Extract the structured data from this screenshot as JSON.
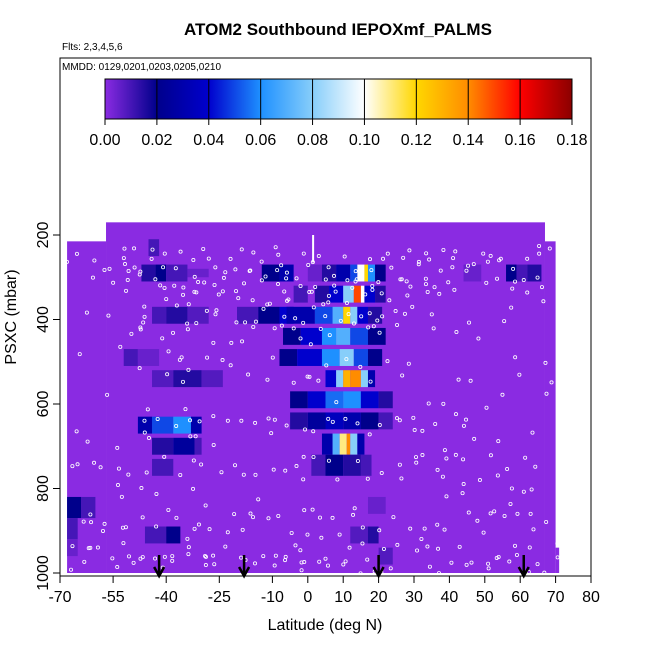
{
  "chart_data": {
    "type": "heatmap",
    "title": "ATOM2 Southbound IEPOXmf_PALMS",
    "flights_note": "Flts: 2,3,4,5,6",
    "dates_note": "MMDD: 0129,0201,0203,0205,0210",
    "xlabel": "Latitude (deg N)",
    "ylabel": "PSXC (mbar)",
    "xlim": [
      -70,
      80
    ],
    "ylim": [
      1000,
      100
    ],
    "x_ticks": [
      -70,
      -55,
      -40,
      -25,
      -10,
      0,
      10,
      20,
      30,
      40,
      50,
      60,
      70,
      80
    ],
    "y_ticks": [
      200,
      400,
      600,
      800,
      1000
    ],
    "colorbar": {
      "range": [
        0,
        0.18
      ],
      "ticks": [
        "0.00",
        "0.02",
        "0.04",
        "0.06",
        "0.08",
        "0.10",
        "0.12",
        "0.14",
        "0.16",
        "0.18"
      ],
      "colors": [
        "#8a2be2",
        "#00008b",
        "#0000cd",
        "#1e90ff",
        "#87cefa",
        "#ffffff",
        "#ffd700",
        "#ff8c00",
        "#ff0000",
        "#8b0000"
      ]
    },
    "background_color": "#8a2be2",
    "coverage": [
      {
        "lat": [
          -57,
          67
        ],
        "p": [
          170,
          1000
        ]
      },
      {
        "lat": [
          -68,
          -57
        ],
        "p": [
          215,
          1000
        ]
      },
      {
        "lat": [
          67,
          70
        ],
        "p": [
          215,
          1000
        ]
      },
      {
        "lat": [
          70,
          71
        ],
        "p": [
          940,
          1000
        ]
      }
    ],
    "cells": [
      {
        "lat": [
          -68,
          -64
        ],
        "p": [
          820,
          870
        ],
        "value": 0.02
      },
      {
        "lat": [
          -64,
          -60
        ],
        "p": [
          820,
          870
        ],
        "value": 0.01
      },
      {
        "lat": [
          -68,
          -65
        ],
        "p": [
          870,
          920
        ],
        "value": 0.01
      },
      {
        "lat": [
          -68,
          -65
        ],
        "p": [
          920,
          960
        ],
        "value": 0.005
      },
      {
        "lat": [
          -45,
          -42
        ],
        "p": [
          210,
          250
        ],
        "value": 0.01
      },
      {
        "lat": [
          -47,
          -43
        ],
        "p": [
          270,
          310
        ],
        "value": 0.015
      },
      {
        "lat": [
          -43,
          -40
        ],
        "p": [
          270,
          310
        ],
        "value": 0.02
      },
      {
        "lat": [
          -40,
          -34
        ],
        "p": [
          270,
          310
        ],
        "value": 0.01
      },
      {
        "lat": [
          -34,
          -28
        ],
        "p": [
          280,
          300
        ],
        "value": 0.005
      },
      {
        "lat": [
          -44,
          -40
        ],
        "p": [
          370,
          410
        ],
        "value": 0.01
      },
      {
        "lat": [
          -40,
          -34
        ],
        "p": [
          370,
          410
        ],
        "value": 0.015
      },
      {
        "lat": [
          -34,
          -28
        ],
        "p": [
          370,
          410
        ],
        "value": 0.008
      },
      {
        "lat": [
          -52,
          -48
        ],
        "p": [
          470,
          510
        ],
        "value": 0.01
      },
      {
        "lat": [
          -48,
          -42
        ],
        "p": [
          470,
          510
        ],
        "value": 0.005
      },
      {
        "lat": [
          -44,
          -38
        ],
        "p": [
          520,
          560
        ],
        "value": 0.008
      },
      {
        "lat": [
          -38,
          -30
        ],
        "p": [
          520,
          560
        ],
        "value": 0.015
      },
      {
        "lat": [
          -30,
          -24
        ],
        "p": [
          520,
          560
        ],
        "value": 0.008
      },
      {
        "lat": [
          -48,
          -44
        ],
        "p": [
          630,
          670
        ],
        "value": 0.03
      },
      {
        "lat": [
          -44,
          -38
        ],
        "p": [
          630,
          670
        ],
        "value": 0.05
      },
      {
        "lat": [
          -38,
          -33
        ],
        "p": [
          630,
          670
        ],
        "value": 0.06
      },
      {
        "lat": [
          -33,
          -30
        ],
        "p": [
          630,
          670
        ],
        "value": 0.03
      },
      {
        "lat": [
          -44,
          -38
        ],
        "p": [
          680,
          720
        ],
        "value": 0.015
      },
      {
        "lat": [
          -38,
          -32
        ],
        "p": [
          680,
          720
        ],
        "value": 0.025
      },
      {
        "lat": [
          -32,
          -30
        ],
        "p": [
          680,
          720
        ],
        "value": 0.01
      },
      {
        "lat": [
          -44,
          -38
        ],
        "p": [
          730,
          770
        ],
        "value": 0.01
      },
      {
        "lat": [
          -46,
          -40
        ],
        "p": [
          890,
          930
        ],
        "value": 0.01
      },
      {
        "lat": [
          -40,
          -36
        ],
        "p": [
          890,
          930
        ],
        "value": 0.02
      },
      {
        "lat": [
          -13,
          -8
        ],
        "p": [
          270,
          310
        ],
        "value": 0.02
      },
      {
        "lat": [
          -8,
          -4
        ],
        "p": [
          270,
          310
        ],
        "value": 0.03
      },
      {
        "lat": [
          -20,
          -14
        ],
        "p": [
          370,
          410
        ],
        "value": 0.01
      },
      {
        "lat": [
          -14,
          -8
        ],
        "p": [
          370,
          410
        ],
        "value": 0.02
      },
      {
        "lat": [
          -8,
          -4
        ],
        "p": [
          370,
          410
        ],
        "value": 0.04
      },
      {
        "lat": [
          -4,
          0
        ],
        "p": [
          320,
          360
        ],
        "value": 0.01
      },
      {
        "lat": [
          0,
          4
        ],
        "p": [
          270,
          310
        ],
        "value": 0.005
      },
      {
        "lat": [
          4,
          8
        ],
        "p": [
          270,
          310
        ],
        "value": 0.015
      },
      {
        "lat": [
          8,
          12
        ],
        "p": [
          270,
          310
        ],
        "value": 0.03
      },
      {
        "lat": [
          12,
          14
        ],
        "p": [
          270,
          310
        ],
        "value": 0.05
      },
      {
        "lat": [
          14,
          16
        ],
        "p": [
          270,
          310
        ],
        "value": 0.1
      },
      {
        "lat": [
          16,
          17
        ],
        "p": [
          270,
          310
        ],
        "value": 0.12
      },
      {
        "lat": [
          17,
          19
        ],
        "p": [
          270,
          310
        ],
        "value": 0.06
      },
      {
        "lat": [
          19,
          22
        ],
        "p": [
          270,
          310
        ],
        "value": 0.02
      },
      {
        "lat": [
          2,
          6
        ],
        "p": [
          320,
          360
        ],
        "value": 0.015
      },
      {
        "lat": [
          6,
          10
        ],
        "p": [
          320,
          360
        ],
        "value": 0.04
      },
      {
        "lat": [
          10,
          13
        ],
        "p": [
          320,
          360
        ],
        "value": 0.08
      },
      {
        "lat": [
          13,
          15
        ],
        "p": [
          320,
          360
        ],
        "value": 0.15
      },
      {
        "lat": [
          15,
          16
        ],
        "p": [
          320,
          360
        ],
        "value": 0.1
      },
      {
        "lat": [
          16,
          19
        ],
        "p": [
          320,
          360
        ],
        "value": 0.04
      },
      {
        "lat": [
          19,
          22
        ],
        "p": [
          320,
          360
        ],
        "value": 0.015
      },
      {
        "lat": [
          -6,
          2
        ],
        "p": [
          370,
          410
        ],
        "value": 0.03
      },
      {
        "lat": [
          2,
          7
        ],
        "p": [
          370,
          410
        ],
        "value": 0.05
      },
      {
        "lat": [
          7,
          10
        ],
        "p": [
          370,
          410
        ],
        "value": 0.07
      },
      {
        "lat": [
          10,
          12
        ],
        "p": [
          370,
          410
        ],
        "value": 0.12
      },
      {
        "lat": [
          12,
          14
        ],
        "p": [
          370,
          410
        ],
        "value": 0.08
      },
      {
        "lat": [
          14,
          17
        ],
        "p": [
          370,
          410
        ],
        "value": 0.04
      },
      {
        "lat": [
          17,
          21
        ],
        "p": [
          370,
          410
        ],
        "value": 0.015
      },
      {
        "lat": [
          -7,
          -2
        ],
        "p": [
          420,
          460
        ],
        "value": 0.02
      },
      {
        "lat": [
          -2,
          4
        ],
        "p": [
          420,
          460
        ],
        "value": 0.04
      },
      {
        "lat": [
          4,
          8
        ],
        "p": [
          420,
          460
        ],
        "value": 0.06
      },
      {
        "lat": [
          8,
          12
        ],
        "p": [
          420,
          460
        ],
        "value": 0.07
      },
      {
        "lat": [
          12,
          17
        ],
        "p": [
          420,
          460
        ],
        "value": 0.05
      },
      {
        "lat": [
          17,
          22
        ],
        "p": [
          420,
          460
        ],
        "value": 0.02
      },
      {
        "lat": [
          -8,
          -3
        ],
        "p": [
          470,
          510
        ],
        "value": 0.02
      },
      {
        "lat": [
          -3,
          4
        ],
        "p": [
          470,
          510
        ],
        "value": 0.04
      },
      {
        "lat": [
          4,
          9
        ],
        "p": [
          470,
          510
        ],
        "value": 0.06
      },
      {
        "lat": [
          9,
          13
        ],
        "p": [
          470,
          510
        ],
        "value": 0.08
      },
      {
        "lat": [
          13,
          17
        ],
        "p": [
          470,
          510
        ],
        "value": 0.05
      },
      {
        "lat": [
          17,
          21
        ],
        "p": [
          470,
          510
        ],
        "value": 0.02
      },
      {
        "lat": [
          5,
          8
        ],
        "p": [
          520,
          560
        ],
        "value": 0.04
      },
      {
        "lat": [
          8,
          10
        ],
        "p": [
          520,
          560
        ],
        "value": 0.08
      },
      {
        "lat": [
          10,
          12
        ],
        "p": [
          520,
          560
        ],
        "value": 0.13
      },
      {
        "lat": [
          12,
          15
        ],
        "p": [
          520,
          560
        ],
        "value": 0.14
      },
      {
        "lat": [
          15,
          17
        ],
        "p": [
          520,
          560
        ],
        "value": 0.08
      },
      {
        "lat": [
          17,
          19
        ],
        "p": [
          520,
          560
        ],
        "value": 0.03
      },
      {
        "lat": [
          -5,
          0
        ],
        "p": [
          570,
          610
        ],
        "value": 0.02
      },
      {
        "lat": [
          0,
          5
        ],
        "p": [
          570,
          610
        ],
        "value": 0.04
      },
      {
        "lat": [
          5,
          10
        ],
        "p": [
          570,
          610
        ],
        "value": 0.055
      },
      {
        "lat": [
          10,
          15
        ],
        "p": [
          570,
          610
        ],
        "value": 0.06
      },
      {
        "lat": [
          15,
          20
        ],
        "p": [
          570,
          610
        ],
        "value": 0.04
      },
      {
        "lat": [
          20,
          24
        ],
        "p": [
          570,
          610
        ],
        "value": 0.015
      },
      {
        "lat": [
          -5,
          0
        ],
        "p": [
          620,
          660
        ],
        "value": 0.015
      },
      {
        "lat": [
          0,
          5
        ],
        "p": [
          620,
          660
        ],
        "value": 0.025
      },
      {
        "lat": [
          5,
          10
        ],
        "p": [
          620,
          660
        ],
        "value": 0.035
      },
      {
        "lat": [
          10,
          15
        ],
        "p": [
          620,
          660
        ],
        "value": 0.03
      },
      {
        "lat": [
          15,
          20
        ],
        "p": [
          620,
          660
        ],
        "value": 0.02
      },
      {
        "lat": [
          20,
          24
        ],
        "p": [
          620,
          660
        ],
        "value": 0.01
      },
      {
        "lat": [
          4,
          7
        ],
        "p": [
          670,
          720
        ],
        "value": 0.03
      },
      {
        "lat": [
          7,
          9
        ],
        "p": [
          670,
          720
        ],
        "value": 0.07
      },
      {
        "lat": [
          9,
          11
        ],
        "p": [
          670,
          720
        ],
        "value": 0.11
      },
      {
        "lat": [
          11,
          12
        ],
        "p": [
          670,
          720
        ],
        "value": 0.14
      },
      {
        "lat": [
          12,
          14
        ],
        "p": [
          670,
          720
        ],
        "value": 0.08
      },
      {
        "lat": [
          14,
          16
        ],
        "p": [
          670,
          720
        ],
        "value": 0.03
      },
      {
        "lat": [
          1,
          5
        ],
        "p": [
          720,
          770
        ],
        "value": 0.01
      },
      {
        "lat": [
          5,
          10
        ],
        "p": [
          720,
          770
        ],
        "value": 0.02
      },
      {
        "lat": [
          10,
          15
        ],
        "p": [
          720,
          770
        ],
        "value": 0.015
      },
      {
        "lat": [
          15,
          18
        ],
        "p": [
          720,
          770
        ],
        "value": 0.01
      },
      {
        "lat": [
          17,
          22
        ],
        "p": [
          820,
          860
        ],
        "value": 0.005
      },
      {
        "lat": [
          12,
          17
        ],
        "p": [
          890,
          930
        ],
        "value": 0.008
      },
      {
        "lat": [
          17,
          20
        ],
        "p": [
          890,
          930
        ],
        "value": 0.015
      },
      {
        "lat": [
          20,
          24
        ],
        "p": [
          940,
          980
        ],
        "value": 0.008
      },
      {
        "lat": [
          44,
          49
        ],
        "p": [
          270,
          310
        ],
        "value": 0.005
      },
      {
        "lat": [
          56,
          59
        ],
        "p": [
          270,
          310
        ],
        "value": 0.02
      },
      {
        "lat": [
          59,
          62
        ],
        "p": [
          270,
          310
        ],
        "value": 0.01
      },
      {
        "lat": [
          62,
          66
        ],
        "p": [
          270,
          310
        ],
        "value": 0.015
      }
    ],
    "flight_tracks": [
      {
        "lat": [
          -68,
          70
        ],
        "p": [
          260,
          260
        ]
      },
      {
        "lat": [
          -60,
          50
        ],
        "p": [
          285,
          285
        ]
      },
      {
        "lat": [
          -55,
          65
        ],
        "p": [
          310,
          310
        ]
      },
      {
        "lat": [
          -50,
          40
        ],
        "p": [
          340,
          340
        ]
      },
      {
        "lat": [
          -45,
          30
        ],
        "p": [
          380,
          380
        ]
      },
      {
        "lat": [
          -50,
          25
        ],
        "p": [
          430,
          430
        ]
      },
      {
        "lat": [
          -40,
          30
        ],
        "p": [
          520,
          520
        ]
      },
      {
        "lat": [
          -45,
          45
        ],
        "p": [
          650,
          650
        ]
      },
      {
        "lat": [
          -65,
          65
        ],
        "p": [
          750,
          750
        ]
      },
      {
        "lat": [
          -60,
          68
        ],
        "p": [
          880,
          880
        ]
      },
      {
        "lat": [
          -66,
          70
        ],
        "p": [
          960,
          960
        ]
      },
      {
        "lat": [
          -66,
          70
        ],
        "p": [
          985,
          985
        ]
      }
    ],
    "vertical_line": {
      "lat": 1.5,
      "p": [
        200,
        265
      ]
    },
    "arrow_latitudes": [
      -42,
      -18,
      20,
      61
    ]
  }
}
